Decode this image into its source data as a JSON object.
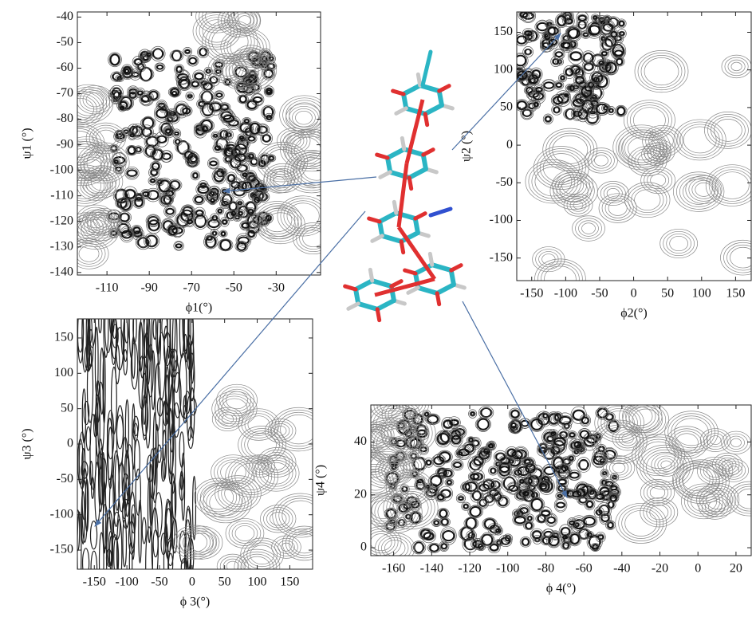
{
  "chart_data": [
    {
      "type": "contour",
      "x_label": "ϕ1(°)",
      "y_label": "ψ1 (°)",
      "xlim": [
        -124,
        -9
      ],
      "ylim": [
        -141,
        -38
      ],
      "xticks": [
        -110,
        -90,
        -70,
        -50,
        -30
      ],
      "yticks": [
        -40,
        -50,
        -60,
        -70,
        -80,
        -90,
        -100,
        -110,
        -120,
        -130,
        -140
      ]
    },
    {
      "type": "contour",
      "x_label": "ϕ2(°)",
      "y_label": "ψ2 (°)",
      "xlim": [
        -172,
        173
      ],
      "ylim": [
        -180,
        177
      ],
      "xticks": [
        -150,
        -100,
        -50,
        0,
        50,
        100,
        150
      ],
      "yticks": [
        150,
        100,
        50,
        0,
        -50,
        -100,
        -150
      ]
    },
    {
      "type": "contour",
      "x_label": "ϕ 3(°)",
      "y_label": "ψ3 (°)",
      "xlim": [
        -176,
        185
      ],
      "ylim": [
        -177,
        177
      ],
      "xticks": [
        -150,
        -100,
        -50,
        0,
        50,
        100,
        150
      ],
      "yticks": [
        150,
        100,
        50,
        0,
        -50,
        -100,
        -150
      ]
    },
    {
      "type": "contour",
      "x_label": "ϕ 4(°)",
      "y_label": "ψ4 (°)",
      "xlim": [
        -172,
        28
      ],
      "ylim": [
        -3,
        54
      ],
      "xticks": [
        -160,
        -140,
        -120,
        -100,
        -80,
        -60,
        -40,
        -20,
        0,
        20
      ],
      "yticks": [
        0,
        20,
        40
      ]
    }
  ]
}
